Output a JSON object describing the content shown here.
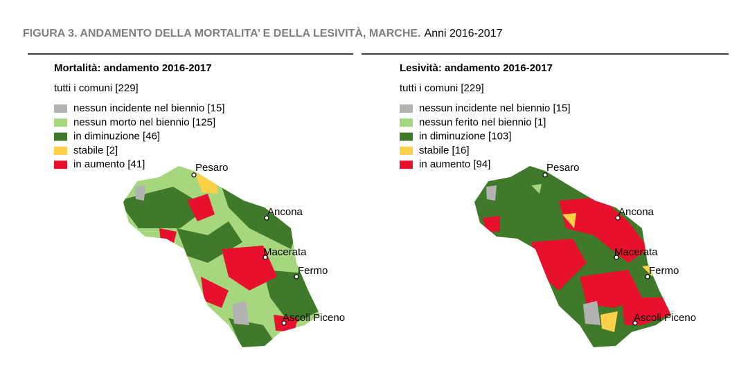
{
  "header": {
    "figure": "FIGURA 3. ANDAMENTO DELLA MORTALITA’ E DELLA LESIVITÀ, MARCHE.",
    "period": "Anni 2016-2017"
  },
  "panels": [
    {
      "title": "Mortalità: andamento 2016-2017",
      "subtitle": "tutti i comuni [229]",
      "legend": [
        "nessun incidente nel biennio [15]",
        "nessun morto nel biennio [125]",
        "in diminuzione [46]",
        "stabile [2]",
        "in aumento [41]"
      ],
      "cities": [
        "Pesaro",
        "Ancona",
        "Macerata",
        "Fermo",
        "Ascoli Piceno"
      ]
    },
    {
      "title": "Lesività: andamento 2016-2017",
      "subtitle": "tutti i comuni [229]",
      "legend": [
        "nessun incidente nel biennio [15]",
        "nessun ferito nel biennio [1]",
        "in diminuzione [103]",
        "stabile [16]",
        "in aumento [94]"
      ],
      "cities": [
        "Pesaro",
        "Ancona",
        "Macerata",
        "Fermo",
        "Ascoli Piceno"
      ]
    }
  ]
}
